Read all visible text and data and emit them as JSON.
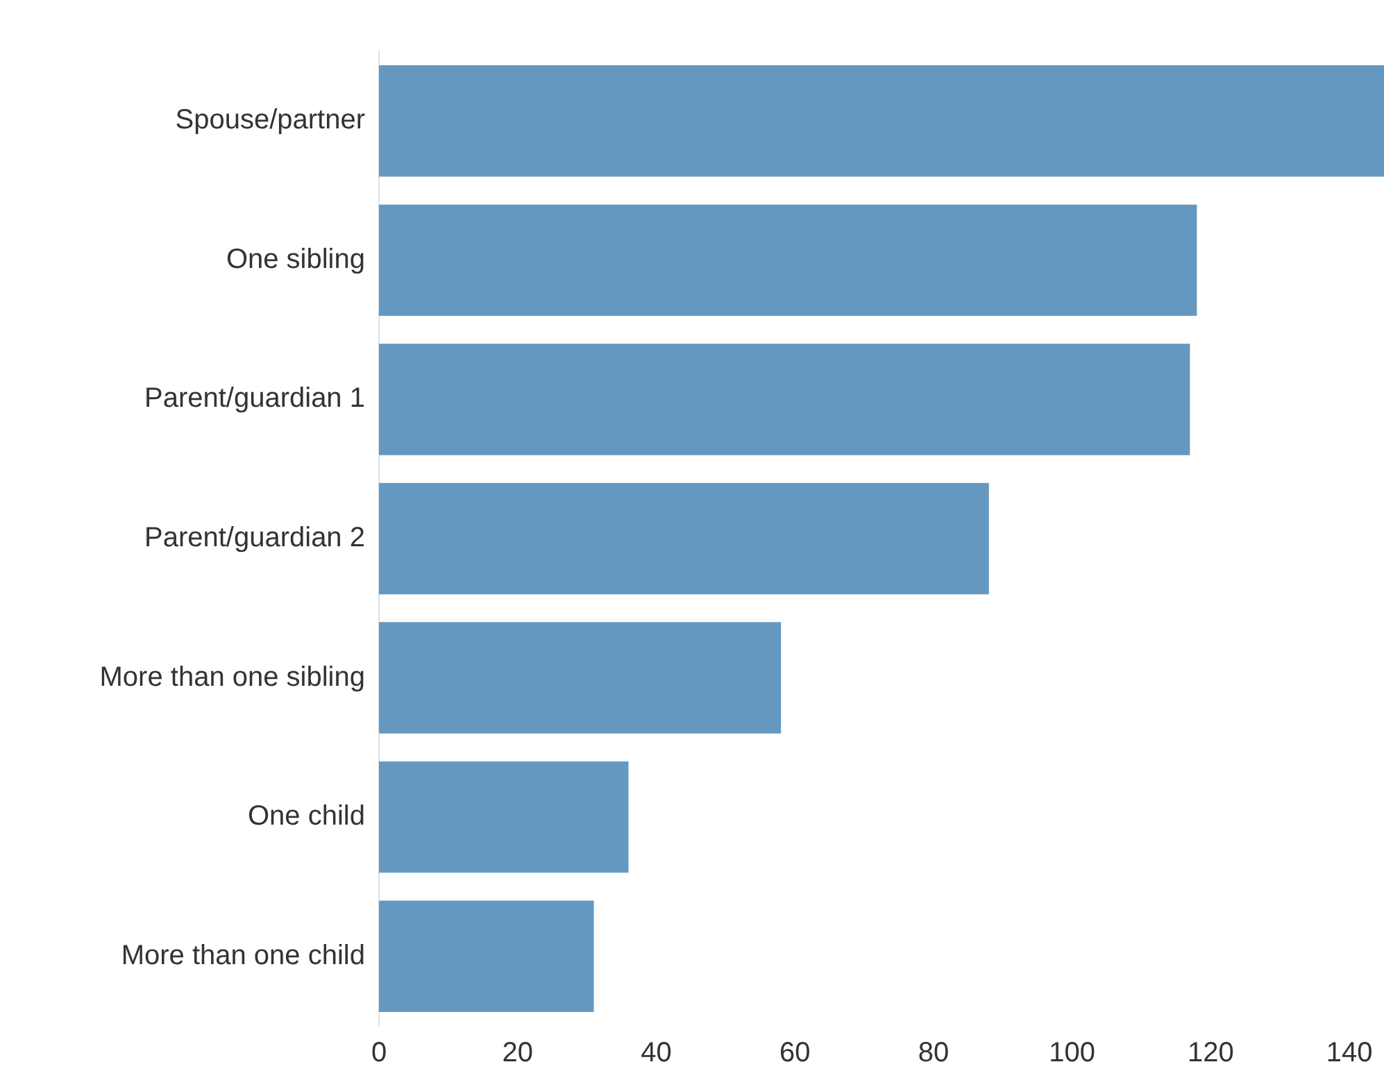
{
  "chart_data": {
    "type": "bar",
    "orientation": "horizontal",
    "categories": [
      "Spouse/partner",
      "One sibling",
      "Parent/guardian 1",
      "Parent/guardian 2",
      "More than one sibling",
      "One child",
      "More than one child"
    ],
    "values": [
      145,
      118,
      117,
      88,
      58,
      36,
      31
    ],
    "color": "#6598c0",
    "xlim": [
      0,
      145
    ],
    "xticks": [
      0,
      20,
      40,
      60,
      80,
      100,
      120,
      140
    ],
    "grid": false,
    "legend": false
  }
}
